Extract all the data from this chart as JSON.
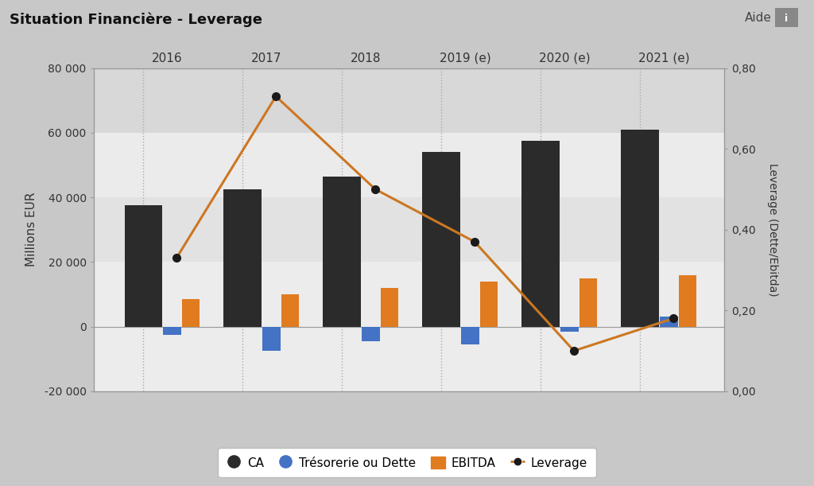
{
  "title": "Situation Financière - Leverage",
  "aide_text": "Aide",
  "years": [
    "2016",
    "2017",
    "2018",
    "2019 (e)",
    "2020 (e)",
    "2021 (e)"
  ],
  "ca": [
    37500,
    42500,
    46500,
    54000,
    57500,
    61000
  ],
  "tresorerie": [
    -2500,
    -7500,
    -4500,
    -5500,
    -1500,
    3000
  ],
  "ebitda": [
    8500,
    10000,
    12000,
    14000,
    15000,
    16000
  ],
  "leverage": [
    0.33,
    0.73,
    0.5,
    0.37,
    0.1,
    0.18
  ],
  "ca_color": "#2b2b2b",
  "tresorerie_color": "#4472c4",
  "ebitda_color": "#e07b20",
  "leverage_color": "#cc7722",
  "ylim_left": [
    -20000,
    80000
  ],
  "ylim_right": [
    0.0,
    0.8
  ],
  "ylabel_left": "Millions EUR",
  "ylabel_right": "Leverage (Dette/Ebitda)",
  "yticks_left": [
    -20000,
    0,
    20000,
    40000,
    60000,
    80000
  ],
  "ytick_labels_left": [
    "-20 000",
    "0",
    "20 000",
    "40 000",
    "60 000",
    "80 000"
  ],
  "yticks_right": [
    0.0,
    0.2,
    0.4,
    0.6,
    0.8
  ],
  "ytick_labels_right": [
    "0,00",
    "0,20",
    "0,40",
    "0,60",
    "0,80"
  ],
  "legend_labels": [
    "CA",
    "Trésorerie ou Dette",
    "EBITDA",
    "Leverage"
  ],
  "ca_bar_width": 0.38,
  "small_bar_width": 0.18,
  "fig_bg": "#c8c8c8",
  "plot_bg": "#e8e8e8",
  "band_colors": [
    "#e0e0e0",
    "#ebebeb",
    "#e0e0e0",
    "#ebebeb",
    "#ebebeb"
  ],
  "band_ranges": [
    [
      -20000,
      0
    ],
    [
      0,
      20000
    ],
    [
      20000,
      40000
    ],
    [
      40000,
      60000
    ],
    [
      60000,
      80000
    ]
  ]
}
